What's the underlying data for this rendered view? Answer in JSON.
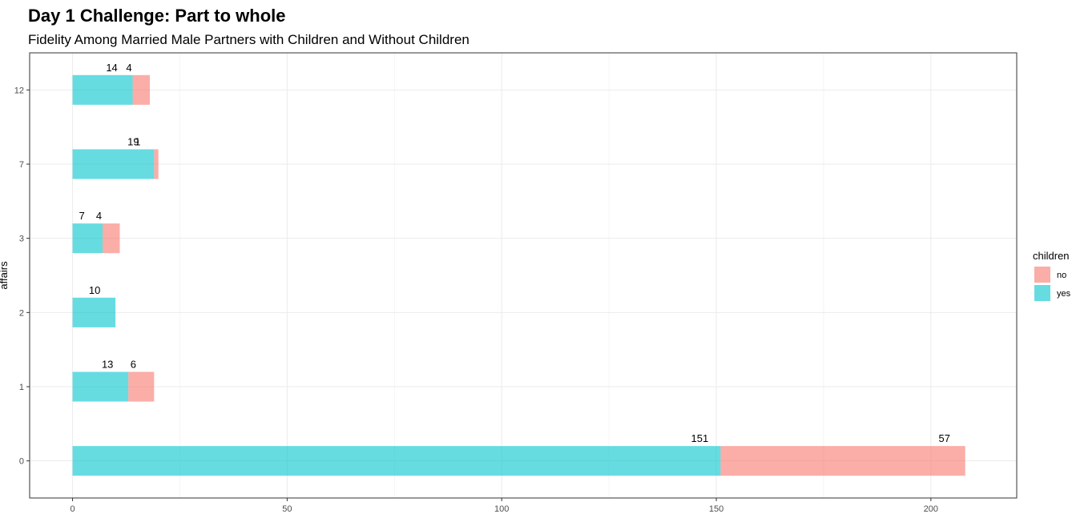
{
  "chart_data": {
    "type": "bar",
    "orientation": "horizontal",
    "stacked": true,
    "title": "Day 1 Challenge: Part to whole",
    "subtitle": "Fidelity Among Married Male Partners with Children and Without Children",
    "xlabel": "",
    "ylabel": "affairs",
    "categories": [
      "0",
      "1",
      "2",
      "3",
      "7",
      "12"
    ],
    "xlim": [
      -10,
      220
    ],
    "x_ticks": [
      0,
      50,
      100,
      150,
      200
    ],
    "grid": true,
    "legend": {
      "title": "children",
      "position": "right",
      "entries": [
        "no",
        "yes"
      ]
    },
    "series": [
      {
        "name": "yes",
        "color": "#00C5CD",
        "values": [
          151,
          13,
          10,
          7,
          19,
          14
        ]
      },
      {
        "name": "no",
        "color": "#F8766D",
        "values": [
          57,
          6,
          0,
          4,
          1,
          4
        ]
      }
    ],
    "data_labels": {
      "yes": [
        "151",
        "13",
        "10",
        "7",
        "19",
        "14"
      ],
      "no": [
        "57",
        "6",
        "",
        "4",
        "1",
        "4"
      ]
    }
  }
}
